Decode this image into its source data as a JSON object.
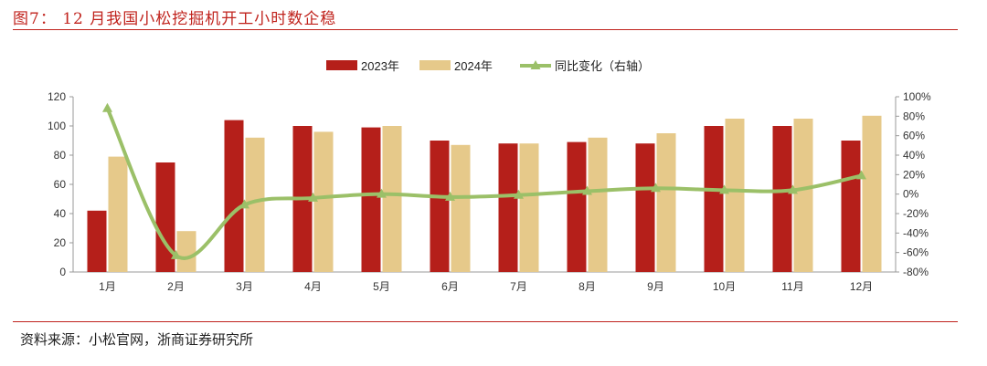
{
  "figure_title": "图7： 12 月我国小松挖掘机开工小时数企稳",
  "source": "资料来源：小松官网，浙商证券研究所",
  "colors": {
    "red": "#c0231d",
    "bar2023": "#b51f1a",
    "bar2024": "#e6c98a",
    "line": "#9bc068",
    "axis": "#999999",
    "rule": "#c0231d"
  },
  "chart_data": {
    "type": "bar",
    "categories": [
      "1月",
      "2月",
      "3月",
      "4月",
      "5月",
      "6月",
      "7月",
      "8月",
      "9月",
      "10月",
      "11月",
      "12月"
    ],
    "series": [
      {
        "name": "2023年",
        "type": "bar",
        "axis": "left",
        "values": [
          42,
          75,
          104,
          100,
          99,
          90,
          88,
          89,
          88,
          100,
          100,
          90
        ]
      },
      {
        "name": "2024年",
        "type": "bar",
        "axis": "left",
        "values": [
          79,
          28,
          92,
          96,
          100,
          87,
          88,
          92,
          95,
          105,
          105,
          107
        ]
      },
      {
        "name": "同比变化（右轴）",
        "type": "line",
        "axis": "right",
        "values": [
          88,
          -63,
          -11,
          -4,
          0,
          -3,
          -1,
          3,
          6,
          4,
          4,
          19
        ]
      }
    ],
    "y_left": {
      "min": 0,
      "max": 120,
      "ticks": [
        "0",
        "20",
        "40",
        "60",
        "80",
        "100",
        "120"
      ]
    },
    "y_right": {
      "min": -80,
      "max": 100,
      "ticks": [
        "-80%",
        "-60%",
        "-40%",
        "-20%",
        "0%",
        "20%",
        "40%",
        "60%",
        "80%",
        "100%"
      ]
    },
    "legend_position": "top-center",
    "grid": false
  }
}
